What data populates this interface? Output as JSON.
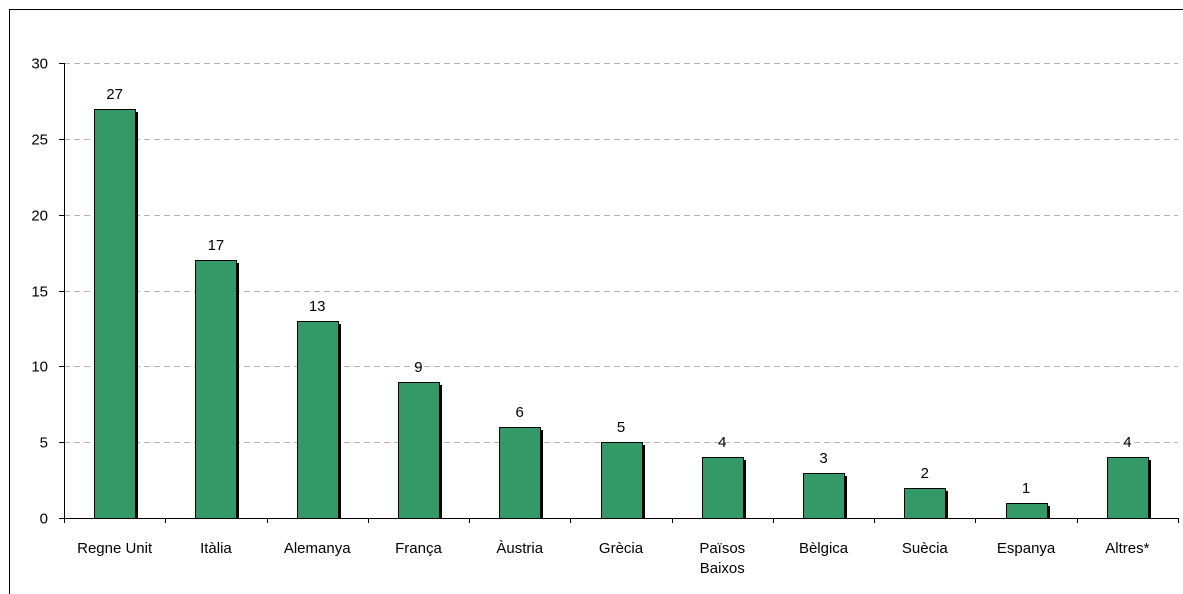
{
  "chart_data": {
    "type": "bar",
    "title": "",
    "xlabel": "",
    "ylabel": "",
    "categories": [
      "Regne Unit",
      "Itàlia",
      "Alemanya",
      "França",
      "Àustria",
      "Grècia",
      "Països Baixos",
      "Bèlgica",
      "Suècia",
      "Espanya",
      "Altres*"
    ],
    "values": [
      27,
      17,
      13,
      9,
      6,
      5,
      4,
      3,
      2,
      1,
      4
    ],
    "ylim": [
      0,
      30
    ],
    "yticks": [
      0,
      5,
      10,
      15,
      20,
      25,
      30
    ],
    "grid": "horizontal dashed",
    "data_labels": true,
    "legend": "none",
    "colors": {
      "bar": "#339966",
      "shadow": "#000000",
      "grid": "#b3b3b3"
    }
  }
}
